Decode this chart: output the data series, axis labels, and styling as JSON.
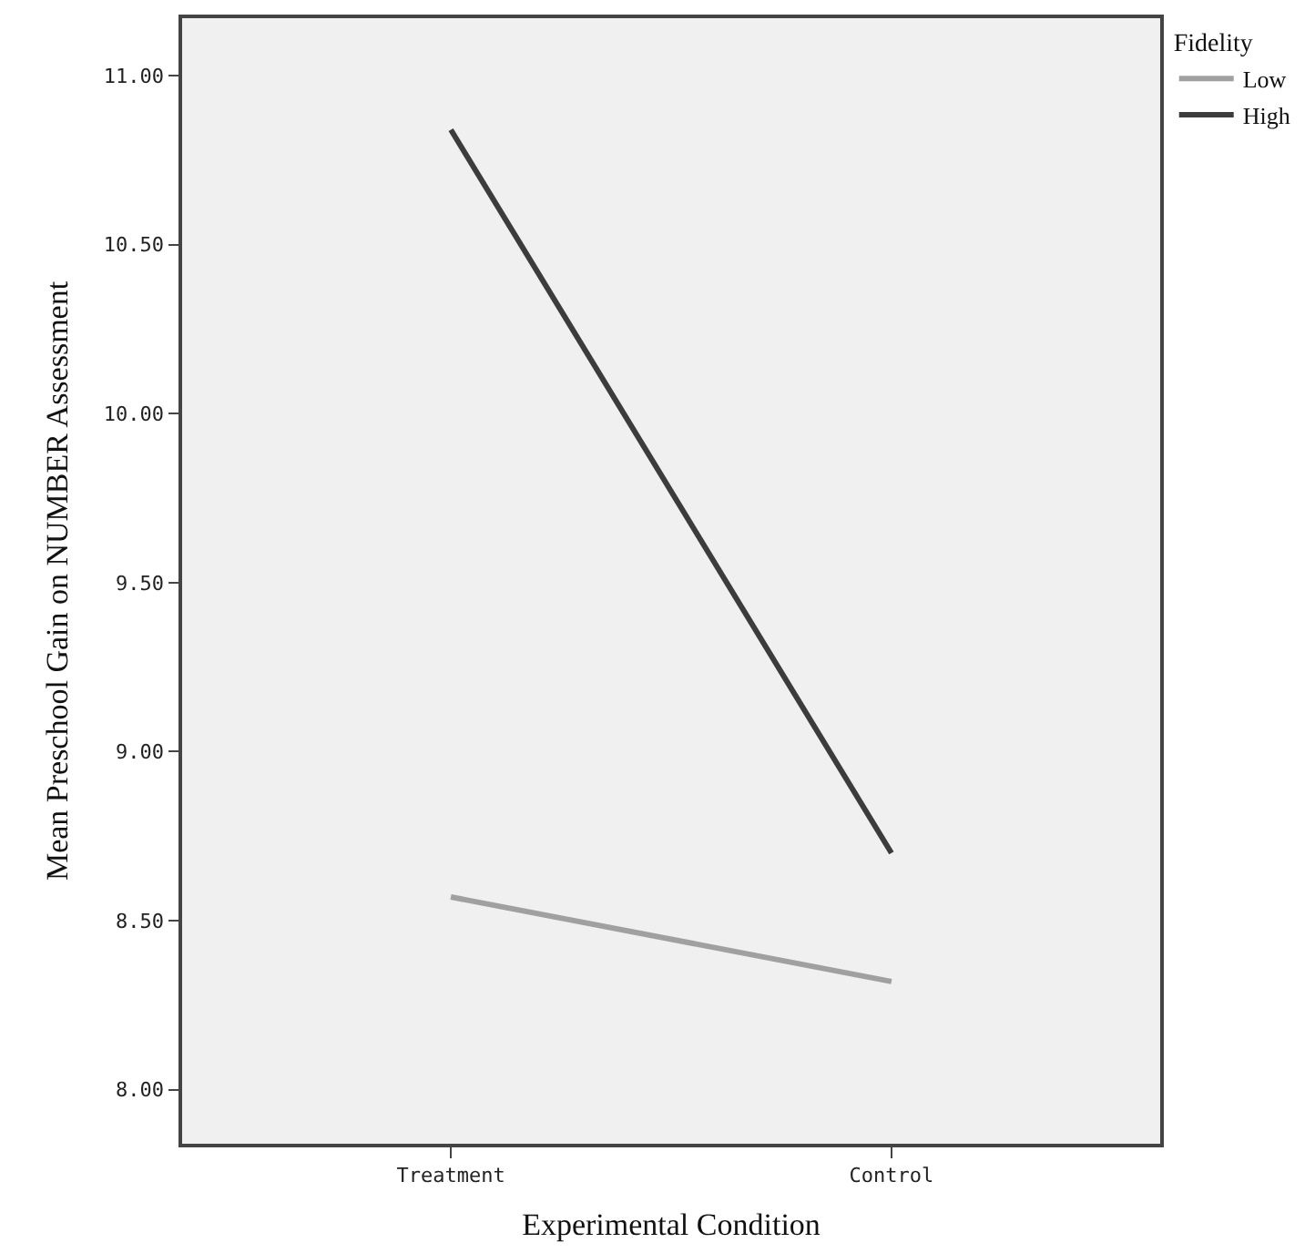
{
  "chart_data": {
    "type": "line",
    "xlabel": "Experimental Condition",
    "ylabel": "Mean Preschool Gain on NUMBER Assessment",
    "legend_title": "Fidelity",
    "categories": [
      "Treatment",
      "Control"
    ],
    "series": [
      {
        "name": "Low",
        "color": "#a0a0a0",
        "values": [
          8.57,
          8.32
        ]
      },
      {
        "name": "High",
        "color": "#3c3c3c",
        "values": [
          10.84,
          8.7
        ]
      }
    ],
    "ylim": [
      7.84,
      11.17
    ],
    "yticks": [
      {
        "value": 8,
        "label": "8.00"
      },
      {
        "value": 8.5,
        "label": "8.50"
      },
      {
        "value": 9,
        "label": "9.00"
      },
      {
        "value": 9.5,
        "label": "9.50"
      },
      {
        "value": 10,
        "label": "10.00"
      },
      {
        "value": 10.5,
        "label": "10.50"
      },
      {
        "value": 11,
        "label": "11.00"
      }
    ],
    "grid": false,
    "legend": "top right",
    "marker": "none",
    "line_style": "solid"
  }
}
